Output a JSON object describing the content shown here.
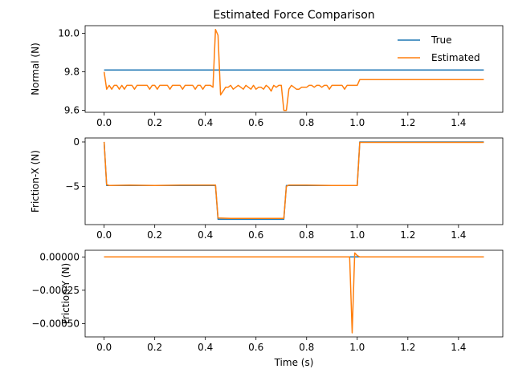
{
  "figure": {
    "title": "Estimated Force Comparison"
  },
  "colors": {
    "true_series": "#1f77b4",
    "estimated_series": "#ff7f0e"
  },
  "legend": {
    "placement": "top-right",
    "entries": [
      "True",
      "Estimated"
    ]
  },
  "chart_data": [
    {
      "type": "line",
      "ylabel": "Normal (N)",
      "xlabel": "",
      "xlim": [
        -0.075,
        1.575
      ],
      "ylim": [
        9.59,
        10.04
      ],
      "xticks": [
        0.0,
        0.2,
        0.4,
        0.6,
        0.8,
        1.0,
        1.2,
        1.4
      ],
      "xtick_labels": [
        "0.0",
        "0.2",
        "0.4",
        "0.6",
        "0.8",
        "1.0",
        "1.2",
        "1.4"
      ],
      "yticks": [
        9.6,
        9.8,
        10.0
      ],
      "ytick_labels": [
        "9.6",
        "9.8",
        "10.0"
      ],
      "grid": false,
      "series": [
        {
          "name": "True",
          "x": [
            0.0,
            1.5
          ],
          "y": [
            9.81,
            9.81
          ]
        },
        {
          "name": "Estimated",
          "x": [
            0.0,
            0.01,
            0.02,
            0.03,
            0.04,
            0.05,
            0.06,
            0.07,
            0.08,
            0.09,
            0.1,
            0.11,
            0.12,
            0.13,
            0.14,
            0.15,
            0.16,
            0.17,
            0.18,
            0.19,
            0.2,
            0.21,
            0.22,
            0.23,
            0.24,
            0.25,
            0.26,
            0.27,
            0.28,
            0.29,
            0.3,
            0.31,
            0.32,
            0.33,
            0.34,
            0.35,
            0.36,
            0.37,
            0.38,
            0.39,
            0.4,
            0.41,
            0.42,
            0.43,
            0.44,
            0.45,
            0.46,
            0.47,
            0.48,
            0.49,
            0.5,
            0.51,
            0.52,
            0.53,
            0.54,
            0.55,
            0.56,
            0.57,
            0.58,
            0.59,
            0.6,
            0.61,
            0.62,
            0.63,
            0.64,
            0.65,
            0.66,
            0.67,
            0.68,
            0.69,
            0.7,
            0.71,
            0.72,
            0.73,
            0.74,
            0.75,
            0.76,
            0.77,
            0.78,
            0.79,
            0.8,
            0.81,
            0.82,
            0.83,
            0.84,
            0.85,
            0.86,
            0.87,
            0.88,
            0.89,
            0.9,
            0.91,
            0.92,
            0.93,
            0.94,
            0.95,
            0.96,
            0.97,
            0.98,
            0.99,
            1.0,
            1.01,
            1.5
          ],
          "y": [
            9.8,
            9.71,
            9.73,
            9.71,
            9.73,
            9.73,
            9.71,
            9.73,
            9.71,
            9.73,
            9.73,
            9.73,
            9.71,
            9.73,
            9.73,
            9.73,
            9.73,
            9.73,
            9.71,
            9.73,
            9.73,
            9.71,
            9.73,
            9.73,
            9.73,
            9.73,
            9.71,
            9.73,
            9.73,
            9.73,
            9.73,
            9.71,
            9.73,
            9.73,
            9.73,
            9.73,
            9.71,
            9.73,
            9.73,
            9.71,
            9.73,
            9.73,
            9.73,
            9.72,
            10.02,
            9.99,
            9.68,
            9.7,
            9.72,
            9.72,
            9.73,
            9.71,
            9.72,
            9.73,
            9.72,
            9.71,
            9.73,
            9.72,
            9.71,
            9.73,
            9.71,
            9.72,
            9.72,
            9.71,
            9.73,
            9.72,
            9.7,
            9.73,
            9.72,
            9.73,
            9.73,
            9.6,
            9.6,
            9.71,
            9.73,
            9.72,
            9.71,
            9.71,
            9.72,
            9.72,
            9.72,
            9.73,
            9.73,
            9.72,
            9.73,
            9.73,
            9.72,
            9.73,
            9.73,
            9.71,
            9.73,
            9.73,
            9.73,
            9.73,
            9.73,
            9.71,
            9.73,
            9.73,
            9.73,
            9.73,
            9.73,
            9.76,
            9.76
          ]
        }
      ]
    },
    {
      "type": "line",
      "ylabel": "Friction-X (N)",
      "xlabel": "",
      "xlim": [
        -0.075,
        1.575
      ],
      "ylim": [
        -9.3,
        0.45
      ],
      "xticks": [
        0.0,
        0.2,
        0.4,
        0.6,
        0.8,
        1.0,
        1.2,
        1.4
      ],
      "xtick_labels": [
        "0.0",
        "0.2",
        "0.4",
        "0.6",
        "0.8",
        "1.0",
        "1.2",
        "1.4"
      ],
      "yticks": [
        -5,
        0
      ],
      "ytick_labels": [
        "−5",
        "0"
      ],
      "grid": false,
      "series": [
        {
          "name": "True",
          "x": [
            0.0,
            0.01,
            0.44,
            0.45,
            0.71,
            0.72,
            1.0,
            1.01,
            1.5
          ],
          "y": [
            0.0,
            -4.9,
            -4.9,
            -8.7,
            -8.7,
            -4.9,
            -4.9,
            0.0,
            0.0
          ]
        },
        {
          "name": "Estimated",
          "x": [
            0.0,
            0.01,
            0.02,
            0.1,
            0.2,
            0.3,
            0.44,
            0.45,
            0.5,
            0.6,
            0.71,
            0.72,
            0.73,
            0.8,
            0.9,
            1.0,
            1.01,
            1.5
          ],
          "y": [
            0.0,
            -4.8,
            -4.9,
            -4.85,
            -4.9,
            -4.85,
            -4.85,
            -8.55,
            -8.6,
            -8.6,
            -8.6,
            -5.0,
            -4.85,
            -4.85,
            -4.9,
            -4.9,
            -0.05,
            -0.05
          ]
        }
      ]
    },
    {
      "type": "line",
      "ylabel": "Friction-Y (N)",
      "xlabel": "Time (s)",
      "xlim": [
        -0.075,
        1.575
      ],
      "ylim": [
        -0.0006,
        5e-05
      ],
      "xticks": [
        0.0,
        0.2,
        0.4,
        0.6,
        0.8,
        1.0,
        1.2,
        1.4
      ],
      "xtick_labels": [
        "0.0",
        "0.2",
        "0.4",
        "0.6",
        "0.8",
        "1.0",
        "1.2",
        "1.4"
      ],
      "yticks": [
        -0.0005,
        -0.00025,
        0.0
      ],
      "ytick_labels": [
        "−0.00050",
        "−0.00025",
        "0.00000"
      ],
      "grid": false,
      "series": [
        {
          "name": "True",
          "x": [
            0.0,
            1.5
          ],
          "y": [
            0.0,
            0.0
          ]
        },
        {
          "name": "Estimated",
          "x": [
            0.0,
            0.97,
            0.98,
            0.99,
            1.0,
            1.01,
            1.5
          ],
          "y": [
            0.0,
            0.0,
            -0.00057,
            3e-05,
            1e-05,
            0.0,
            0.0
          ]
        }
      ]
    }
  ]
}
